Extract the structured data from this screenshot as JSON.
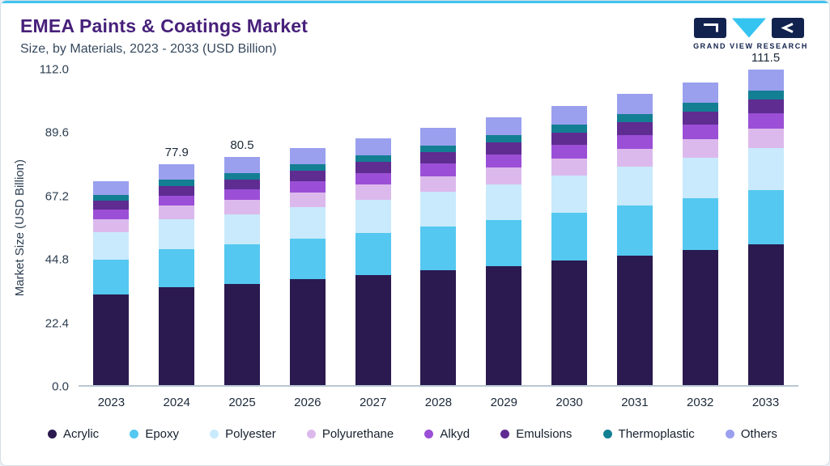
{
  "header": {
    "title": "EMEA Paints & Coatings Market",
    "subtitle": "Size, by Materials, 2023 - 2033 (USD Billion)",
    "logo_text": "GRAND VIEW RESEARCH"
  },
  "theme": {
    "accent_line": "#3fc3f1",
    "title_color": "#47207a",
    "brand_navy": "#12224e",
    "brand_cyan": "#35c4f0"
  },
  "chart_data": {
    "type": "bar",
    "stacked": true,
    "title": "EMEA Paints & Coatings Market Size, by Materials, 2023 - 2033 (USD Billion)",
    "xlabel": "",
    "ylabel": "Market Size (USD Billion)",
    "ylim": [
      0,
      112
    ],
    "grid": false,
    "legend_position": "bottom",
    "yticks": [
      {
        "value": 0,
        "label": "0.0"
      },
      {
        "value": 22.4,
        "label": "22.4"
      },
      {
        "value": 44.8,
        "label": "44.8"
      },
      {
        "value": 67.2,
        "label": "67.2"
      },
      {
        "value": 89.6,
        "label": "89.6"
      },
      {
        "value": 112,
        "label": "112.0"
      }
    ],
    "categories": [
      "2023",
      "2024",
      "2025",
      "2026",
      "2027",
      "2028",
      "2029",
      "2030",
      "2031",
      "2032",
      "2033"
    ],
    "bar_labels": [
      "",
      "77.9",
      "80.5",
      "",
      "",
      "",
      "",
      "",
      "",
      "",
      "111.5"
    ],
    "totals": [
      72.1,
      77.9,
      80.5,
      83.8,
      87.1,
      90.9,
      94.7,
      98.6,
      102.8,
      106.9,
      111.5
    ],
    "series": [
      {
        "name": "Acrylic",
        "color": "#2a1a4f",
        "values": [
          32.0,
          34.7,
          35.8,
          37.3,
          38.8,
          40.5,
          42.1,
          43.9,
          45.7,
          47.6,
          49.6
        ]
      },
      {
        "name": "Epoxy",
        "color": "#54c8f0",
        "values": [
          12.4,
          13.4,
          13.8,
          14.4,
          15.0,
          15.6,
          16.3,
          17.0,
          17.7,
          18.4,
          19.2
        ]
      },
      {
        "name": "Polyester",
        "color": "#c8eafc",
        "values": [
          9.6,
          10.4,
          10.7,
          11.2,
          11.6,
          12.1,
          12.6,
          13.1,
          13.7,
          14.2,
          14.8
        ]
      },
      {
        "name": "Polyurethane",
        "color": "#dcb9ec",
        "values": [
          4.5,
          4.8,
          5.0,
          5.2,
          5.4,
          5.6,
          5.9,
          6.1,
          6.4,
          6.6,
          6.9
        ]
      },
      {
        "name": "Alkyd",
        "color": "#9b4fd6",
        "values": [
          3.5,
          3.7,
          3.9,
          4.0,
          4.2,
          4.4,
          4.5,
          4.7,
          4.9,
          5.1,
          5.4
        ]
      },
      {
        "name": "Emulsions",
        "color": "#5f2c91",
        "values": [
          3.2,
          3.4,
          3.5,
          3.7,
          3.8,
          4.0,
          4.2,
          4.3,
          4.5,
          4.7,
          4.9
        ]
      },
      {
        "name": "Thermoplastic",
        "color": "#137f93",
        "values": [
          2.0,
          2.2,
          2.3,
          2.3,
          2.4,
          2.5,
          2.7,
          2.8,
          2.9,
          3.0,
          3.1
        ]
      },
      {
        "name": "Others",
        "color": "#9aa0ee",
        "values": [
          4.9,
          5.3,
          5.5,
          5.7,
          5.9,
          6.2,
          6.4,
          6.7,
          7.0,
          7.3,
          7.6
        ]
      }
    ]
  }
}
